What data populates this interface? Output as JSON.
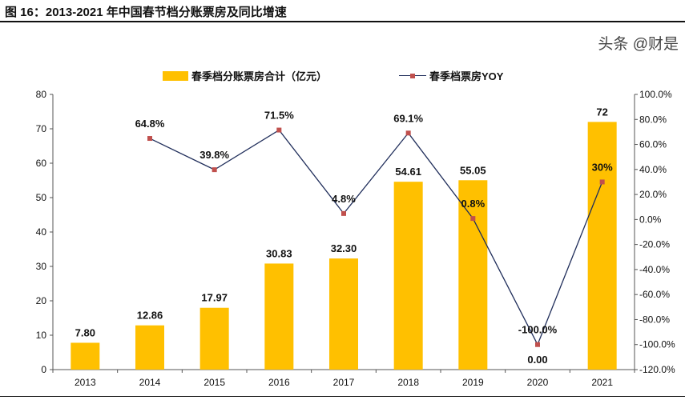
{
  "title": "图 16：2013-2021 年中国春节档分账票房及同比增速",
  "watermark": "头条 @财是",
  "chart_data": {
    "type": "bar+line",
    "categories": [
      "2013",
      "2014",
      "2015",
      "2016",
      "2017",
      "2018",
      "2019",
      "2020",
      "2021"
    ],
    "series": [
      {
        "name": "春季档分账票房合计（亿元）",
        "type": "bar",
        "axis": "left",
        "color": "#FFC000",
        "values": [
          7.8,
          12.86,
          17.97,
          30.83,
          32.3,
          54.61,
          55.05,
          0.0,
          72
        ],
        "labels": [
          "7.80",
          "12.86",
          "17.97",
          "30.83",
          "32.30",
          "54.61",
          "55.05",
          "0.00",
          "72"
        ]
      },
      {
        "name": "春季档票房YOY",
        "type": "line",
        "axis": "right",
        "color": "#1F2D5A",
        "marker_color": "#C0504D",
        "values": [
          null,
          64.8,
          39.8,
          71.5,
          4.8,
          69.1,
          0.8,
          -100.0,
          30
        ],
        "labels": [
          "",
          "64.8%",
          "39.8%",
          "71.5%",
          "4.8%",
          "69.1%",
          "0.8%",
          "-100.0%",
          "30%"
        ]
      }
    ],
    "left_axis": {
      "ylim": [
        0,
        80
      ],
      "ticks": [
        "0",
        "10",
        "20",
        "30",
        "40",
        "50",
        "60",
        "70",
        "80"
      ]
    },
    "right_axis": {
      "ylim": [
        -120,
        100
      ],
      "ticks": [
        "-120.0%",
        "-100.0%",
        "-80.0%",
        "-60.0%",
        "-40.0%",
        "-20.0%",
        "0.0%",
        "20.0%",
        "40.0%",
        "60.0%",
        "80.0%",
        "100.0%"
      ]
    },
    "grid": false,
    "legend": "top"
  }
}
